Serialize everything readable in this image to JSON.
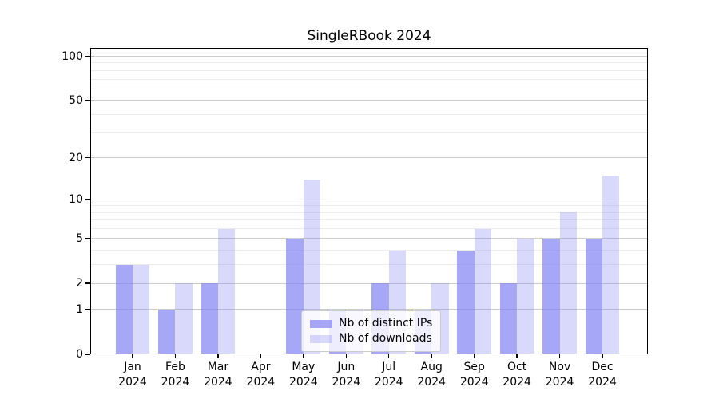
{
  "chart_data": {
    "type": "bar",
    "title": "SingleRBook 2024",
    "categories": [
      "Jan",
      "Feb",
      "Mar",
      "Apr",
      "May",
      "Jun",
      "Jul",
      "Aug",
      "Sep",
      "Oct",
      "Nov",
      "Dec"
    ],
    "category_year": "2024",
    "series": [
      {
        "name": "Nb of distinct IPs",
        "slug": "distinct-ips",
        "color": "#8282f3",
        "alpha": 0.7,
        "rendered_color": "#a6a6f7",
        "values": [
          3,
          1,
          2,
          0,
          5,
          1,
          2,
          1,
          4,
          2,
          5,
          5
        ]
      },
      {
        "name": "Nb of downloads",
        "slug": "downloads",
        "color": "#8282f3",
        "alpha": 0.3,
        "rendered_color": "#d9d9f8",
        "values": [
          3,
          2,
          6,
          0,
          14,
          1,
          4,
          2,
          6,
          5,
          8,
          15
        ]
      }
    ],
    "y_axis": {
      "scale": "log1p",
      "major_ticks": [
        0,
        1,
        2,
        5,
        10,
        20,
        50,
        100
      ],
      "minor_ticks": [
        3,
        4,
        6,
        7,
        8,
        9,
        30,
        40,
        60,
        70,
        80,
        90
      ],
      "top_value": 114
    },
    "legend": {
      "position": "lower-center"
    },
    "grid": {
      "major_color": "#cccccc",
      "minor_color": "#ededed"
    },
    "spine_color": "#000000",
    "background": "#ffffff"
  }
}
